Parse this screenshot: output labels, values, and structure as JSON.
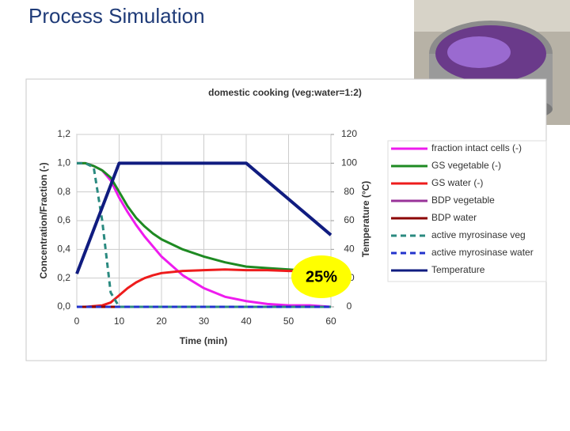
{
  "slide_title": "Process Simulation",
  "chart_data": {
    "type": "line",
    "title": "domestic cooking (veg:water=1:2)",
    "x_label": "Time (min)",
    "y_label": "Concentration/Fraction (-)",
    "y2_label": "Temperature (°C)",
    "annotation": "25%",
    "x": [
      0,
      2,
      4,
      6,
      8,
      10,
      12,
      14,
      16,
      18,
      20,
      25,
      30,
      35,
      40,
      45,
      50,
      55,
      60
    ],
    "xlim": [
      0,
      60
    ],
    "xticks": [
      0,
      10,
      20,
      30,
      40,
      50,
      60
    ],
    "ylim": [
      0,
      1.2
    ],
    "yticks": [
      {
        "value": 0,
        "label": "0,0"
      },
      {
        "value": 0.2,
        "label": "0,2"
      },
      {
        "value": 0.4,
        "label": "0,4"
      },
      {
        "value": 0.6,
        "label": "0,6"
      },
      {
        "value": 0.8,
        "label": "0,8"
      },
      {
        "value": 1.0,
        "label": "1,0"
      },
      {
        "value": 1.2,
        "label": "1,2"
      }
    ],
    "y2lim": [
      0,
      120
    ],
    "y2ticks": [
      0,
      20,
      40,
      60,
      80,
      100,
      120
    ],
    "grid": true,
    "series": [
      {
        "name": "fraction intact cells (-)",
        "color": "#ee1cee",
        "values": [
          1.0,
          1.0,
          0.98,
          0.95,
          0.88,
          0.76,
          0.66,
          0.57,
          0.49,
          0.42,
          0.35,
          0.22,
          0.13,
          0.07,
          0.04,
          0.02,
          0.01,
          0.01,
          0.0
        ]
      },
      {
        "name": "GS vegetable (-)",
        "color": "#1e8a22",
        "values": [
          1.0,
          1.0,
          0.98,
          0.95,
          0.9,
          0.8,
          0.7,
          0.62,
          0.56,
          0.51,
          0.47,
          0.4,
          0.35,
          0.31,
          0.28,
          0.27,
          0.26,
          0.25,
          0.25
        ]
      },
      {
        "name": "GS water (-)",
        "color": "#ee1c1c",
        "values": [
          0,
          0,
          0.005,
          0.01,
          0.03,
          0.08,
          0.13,
          0.17,
          0.2,
          0.22,
          0.235,
          0.25,
          0.255,
          0.26,
          0.255,
          0.255,
          0.25,
          0.25,
          0.25
        ]
      },
      {
        "name": "BDP vegetable",
        "color": "#993399",
        "values": [
          0,
          0,
          0,
          0,
          0,
          0,
          0,
          0,
          0,
          0,
          0,
          0,
          0,
          0,
          0,
          0,
          0,
          0,
          0
        ]
      },
      {
        "name": "BDP water",
        "color": "#8b0000",
        "values": [
          0,
          0,
          0,
          0,
          0,
          0,
          0,
          0,
          0,
          0,
          0,
          0,
          0,
          0,
          0,
          0,
          0,
          0,
          0
        ]
      },
      {
        "name": "active myrosinase veg",
        "color": "#2a8a80",
        "dashed": true,
        "values": [
          1.0,
          1.0,
          0.97,
          0.6,
          0.1,
          0,
          0,
          0,
          0,
          0,
          0,
          0,
          0,
          0,
          0,
          0,
          0,
          0,
          0
        ]
      },
      {
        "name": "active myrosinase water",
        "color": "#2233cc",
        "dashed": true,
        "values": [
          0,
          0,
          0,
          0,
          0,
          0,
          0,
          0,
          0,
          0,
          0,
          0,
          0,
          0,
          0,
          0,
          0,
          0,
          0
        ]
      },
      {
        "name": "Temperature",
        "color": "#101c80",
        "axis": "y2",
        "values": [
          23,
          38.4,
          53.8,
          69.2,
          84.6,
          100,
          100,
          100,
          100,
          100,
          100,
          100,
          100,
          100,
          100,
          87.5,
          75,
          62.5,
          50
        ]
      }
    ]
  }
}
